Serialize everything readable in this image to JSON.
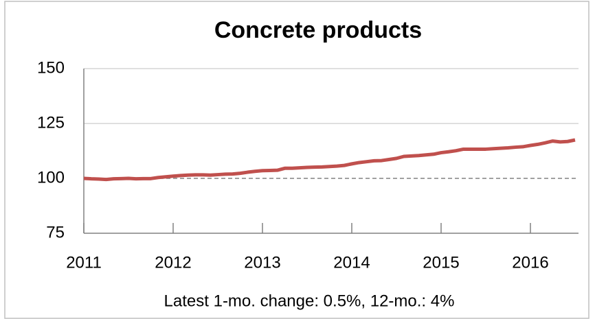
{
  "chart_data": {
    "type": "line",
    "title": "Concrete products",
    "annotation": "Latest 1-mo. change: 0.5%, 12-mo.: 4%",
    "categories": [
      "2011",
      null,
      null,
      null,
      null,
      null,
      null,
      null,
      null,
      null,
      null,
      null,
      "2012",
      null,
      null,
      null,
      null,
      null,
      null,
      null,
      null,
      null,
      null,
      null,
      "2013",
      null,
      null,
      null,
      null,
      null,
      null,
      null,
      null,
      null,
      null,
      null,
      "2014",
      null,
      null,
      null,
      null,
      null,
      null,
      null,
      null,
      null,
      null,
      null,
      "2015",
      null,
      null,
      null,
      null,
      null,
      null,
      null,
      null,
      null,
      null,
      null,
      "2016",
      null,
      null,
      null,
      null,
      null,
      null
    ],
    "series": [
      {
        "color": "#c0504d",
        "values": [
          100,
          99.8,
          99.7,
          99.5,
          99.8,
          99.9,
          100,
          99.8,
          99.9,
          99.9,
          100.4,
          100.7,
          101,
          101.3,
          101.5,
          101.6,
          101.6,
          101.5,
          101.7,
          101.9,
          102,
          102.3,
          102.8,
          103.2,
          103.5,
          103.6,
          103.7,
          104.6,
          104.6,
          104.8,
          105,
          105.1,
          105.2,
          105.4,
          105.6,
          105.9,
          106.6,
          107.2,
          107.6,
          108,
          108.1,
          108.6,
          109.1,
          110,
          110.2,
          110.4,
          110.7,
          111,
          111.7,
          112.1,
          112.6,
          113.3,
          113.3,
          113.3,
          113.3,
          113.5,
          113.7,
          113.9,
          114.2,
          114.4,
          115,
          115.5,
          116.2,
          117,
          116.6,
          116.8,
          117.5
        ]
      }
    ],
    "ylim": [
      75,
      150
    ],
    "yticks": [
      75,
      100,
      125,
      150
    ],
    "grid": true,
    "hline": 100
  }
}
